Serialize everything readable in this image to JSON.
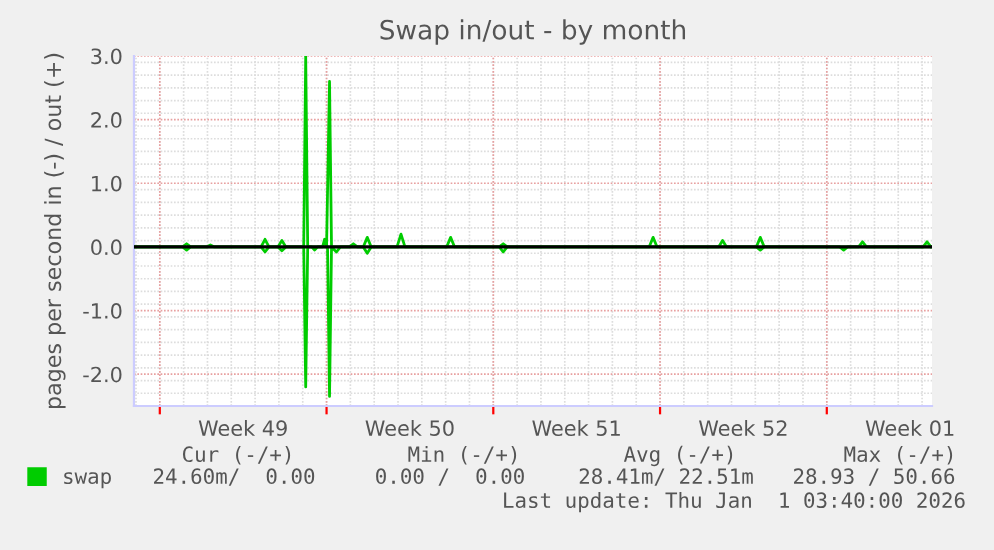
{
  "chart_data": {
    "type": "line",
    "title": "Swap in/out - by month",
    "ylabel": "pages per second in (-) / out (+)",
    "series": [
      {
        "name": "swap",
        "color": "#00cc00",
        "x": [
          "2025-11-29T22:00",
          "2025-12-01T23:00",
          "2025-12-02T03:00",
          "2025-12-02T07:00",
          "2025-12-02T23:00",
          "2025-12-03T03:00",
          "2025-12-03T07:00",
          "2025-12-05T06:00",
          "2025-12-05T10:00",
          "2025-12-05T14:00",
          "2025-12-05T23:00",
          "2025-12-06T03:00",
          "2025-12-06T07:00",
          "2025-12-07T01:00",
          "2025-12-07T03:00",
          "2025-12-07T05:00",
          "2025-12-07T20:00",
          "2025-12-07T22:00",
          "2025-12-08T00:00",
          "2025-12-08T03:00",
          "2025-12-08T05:00",
          "2025-12-08T23:00",
          "2025-12-09T03:00",
          "2025-12-09T07:00",
          "2025-12-09T13:00",
          "2025-12-09T17:00",
          "2025-12-09T21:00",
          "2025-12-10T23:00",
          "2025-12-11T03:00",
          "2025-12-11T07:00",
          "2025-12-13T01:00",
          "2025-12-13T05:00",
          "2025-12-13T09:00",
          "2025-12-15T06:00",
          "2025-12-15T10:00",
          "2025-12-15T14:00",
          "2025-12-21T13:00",
          "2025-12-21T17:00",
          "2025-12-21T21:00",
          "2025-12-24T11:00",
          "2025-12-24T15:00",
          "2025-12-24T19:00",
          "2025-12-26T01:00",
          "2025-12-26T05:00",
          "2025-12-26T09:00",
          "2025-12-30T08:00",
          "2025-12-30T12:00",
          "2025-12-30T16:00",
          "2026-01-02T01:00",
          "2026-01-02T05:00",
          "2026-01-02T09:00"
        ],
        "values": [
          0,
          0,
          0.05,
          0,
          0,
          0.03,
          0,
          0,
          0.12,
          0,
          0,
          0.1,
          0,
          0,
          3.0,
          0,
          0,
          0.12,
          0,
          2.6,
          0,
          0,
          0.05,
          0,
          0,
          0.15,
          0,
          0,
          0.2,
          0,
          0,
          0.15,
          0,
          0,
          0.05,
          0,
          0,
          0.15,
          0,
          0,
          0.1,
          0,
          0,
          0.15,
          0,
          0,
          0.08,
          0,
          0,
          0.08,
          0
        ]
      },
      {
        "color": "#00cc00",
        "x": [
          "2025-11-29T22:00",
          "2025-12-01T23:00",
          "2025-12-02T03:00",
          "2025-12-02T07:00",
          "2025-12-05T06:00",
          "2025-12-05T10:00",
          "2025-12-05T14:00",
          "2025-12-05T23:00",
          "2025-12-06T03:00",
          "2025-12-06T07:00",
          "2025-12-07T01:00",
          "2025-12-07T03:00",
          "2025-12-07T05:00",
          "2025-12-07T09:00",
          "2025-12-07T12:00",
          "2025-12-07T15:00",
          "2025-12-08T01:00",
          "2025-12-08T03:00",
          "2025-12-08T05:00",
          "2025-12-08T10:00",
          "2025-12-08T14:00",
          "2025-12-09T13:00",
          "2025-12-09T17:00",
          "2025-12-09T21:00",
          "2025-12-15T06:00",
          "2025-12-15T10:00",
          "2025-12-15T14:00",
          "2025-12-26T01:00",
          "2025-12-26T05:00",
          "2025-12-26T09:00",
          "2025-12-29T13:00",
          "2025-12-29T17:00",
          "2025-12-29T21:00",
          "2026-01-02T10:00"
        ],
        "values": [
          0,
          0,
          -0.05,
          0,
          0,
          -0.08,
          0,
          0,
          -0.06,
          0,
          0,
          -2.2,
          0,
          0,
          -0.05,
          0,
          0,
          -2.35,
          0,
          -0.08,
          0,
          0,
          -0.1,
          0,
          0,
          -0.08,
          0,
          0,
          -0.05,
          0,
          0,
          -0.05,
          0,
          0
        ]
      }
    ],
    "xlim": [
      "2025-11-29T22:00",
      "2026-01-02T10:00"
    ],
    "xticks": [
      {
        "value": "2025-12-01",
        "label": null
      },
      {
        "value": "2025-12-04T12:00",
        "label": "Week 49"
      },
      {
        "value": "2025-12-08",
        "label": null
      },
      {
        "value": "2025-12-11T12:00",
        "label": "Week 50"
      },
      {
        "value": "2025-12-15",
        "label": null
      },
      {
        "value": "2025-12-18T12:00",
        "label": "Week 51"
      },
      {
        "value": "2025-12-22",
        "label": null
      },
      {
        "value": "2025-12-25T12:00",
        "label": "Week 52"
      },
      {
        "value": "2025-12-29",
        "label": null
      },
      {
        "value": "2026-01-01T12:00",
        "label": "Week 01"
      }
    ],
    "ylim": [
      -2.5,
      3.0
    ],
    "yticks": [
      {
        "value": -2,
        "label": "-2.0"
      },
      {
        "value": -1,
        "label": "-1.0"
      },
      {
        "value": 0,
        "label": "0.0"
      },
      {
        "value": 1,
        "label": "1.0"
      },
      {
        "value": 2,
        "label": "2.0"
      },
      {
        "value": 3,
        "label": "3.0"
      }
    ],
    "ref_lines": [
      {
        "axis": "y",
        "value": 0,
        "color": "#000000"
      }
    ],
    "grid": true,
    "legend": "bottom",
    "marker": "none",
    "line_style": "solid",
    "annotations": [
      "Cur (-/+)",
      "Min (-/+)",
      "Avg (-/+)",
      "Max (-/+)",
      "24.60m/  0.00",
      "0.00 /  0.00",
      "28.41m/ 22.51m",
      "28.93 / 50.66",
      "Last update: Thu Jan  1 03:40:00 2026"
    ]
  }
}
